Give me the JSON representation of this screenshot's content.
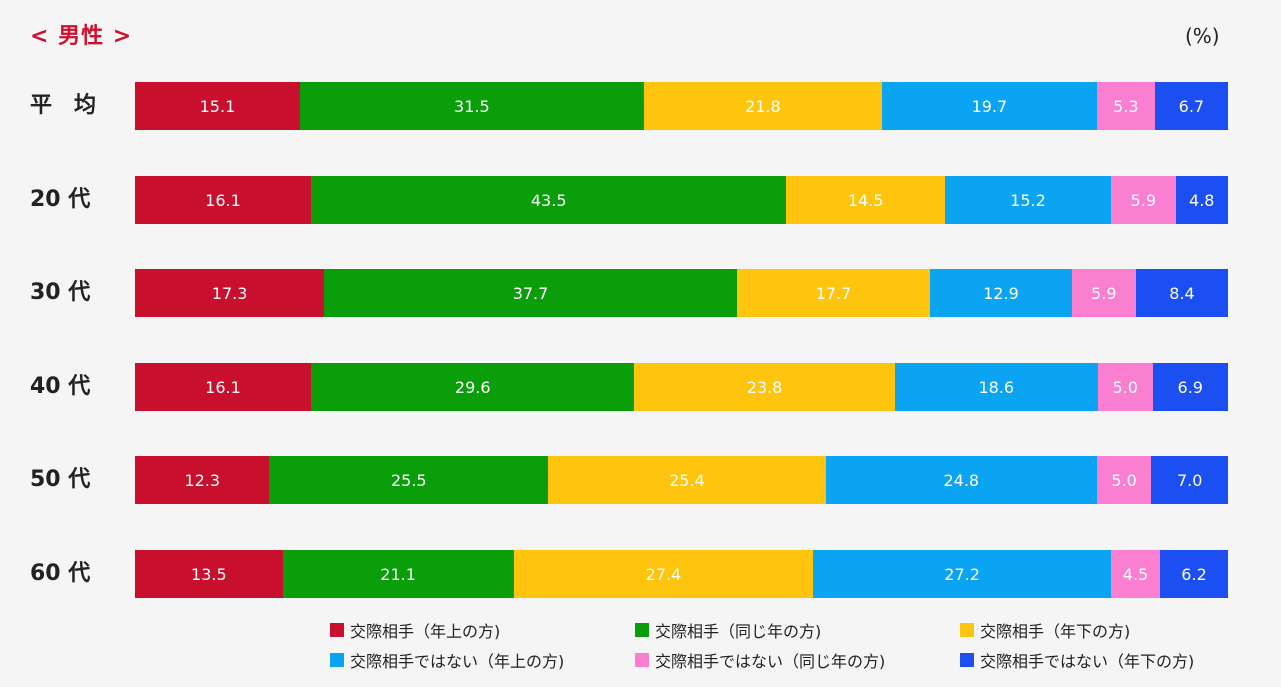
{
  "chart_data": {
    "type": "bar",
    "orientation": "horizontal",
    "stacked": true,
    "title": "< 男性 >",
    "unit_label": "(%)",
    "categories": [
      "平　均",
      "20 代",
      "30 代",
      "40 代",
      "50 代",
      "60 代"
    ],
    "series": [
      {
        "name": "交際相手（年上の方)",
        "color": "#c8102e",
        "values": [
          15.1,
          16.1,
          17.3,
          16.1,
          12.3,
          13.5
        ]
      },
      {
        "name": "交際相手（同じ年の方)",
        "color": "#0a9e0a",
        "values": [
          31.5,
          43.5,
          37.7,
          29.6,
          25.5,
          21.1
        ]
      },
      {
        "name": "交際相手（年下の方)",
        "color": "#ffc40d",
        "values": [
          21.8,
          14.5,
          17.7,
          23.8,
          25.4,
          27.4
        ]
      },
      {
        "name": "交際相手ではない（年上の方)",
        "color": "#0ba4f2",
        "values": [
          19.7,
          15.2,
          12.9,
          18.6,
          24.8,
          27.2
        ]
      },
      {
        "name": "交際相手ではない（同じ年の方)",
        "color": "#fa7fd0",
        "values": [
          5.3,
          5.9,
          5.9,
          5.0,
          5.0,
          4.5
        ]
      },
      {
        "name": "交際相手ではない（年下の方)",
        "color": "#1b4ff2",
        "values": [
          6.7,
          4.8,
          8.4,
          6.9,
          7.0,
          6.2
        ]
      }
    ],
    "legend_position": "bottom",
    "grid": false
  }
}
